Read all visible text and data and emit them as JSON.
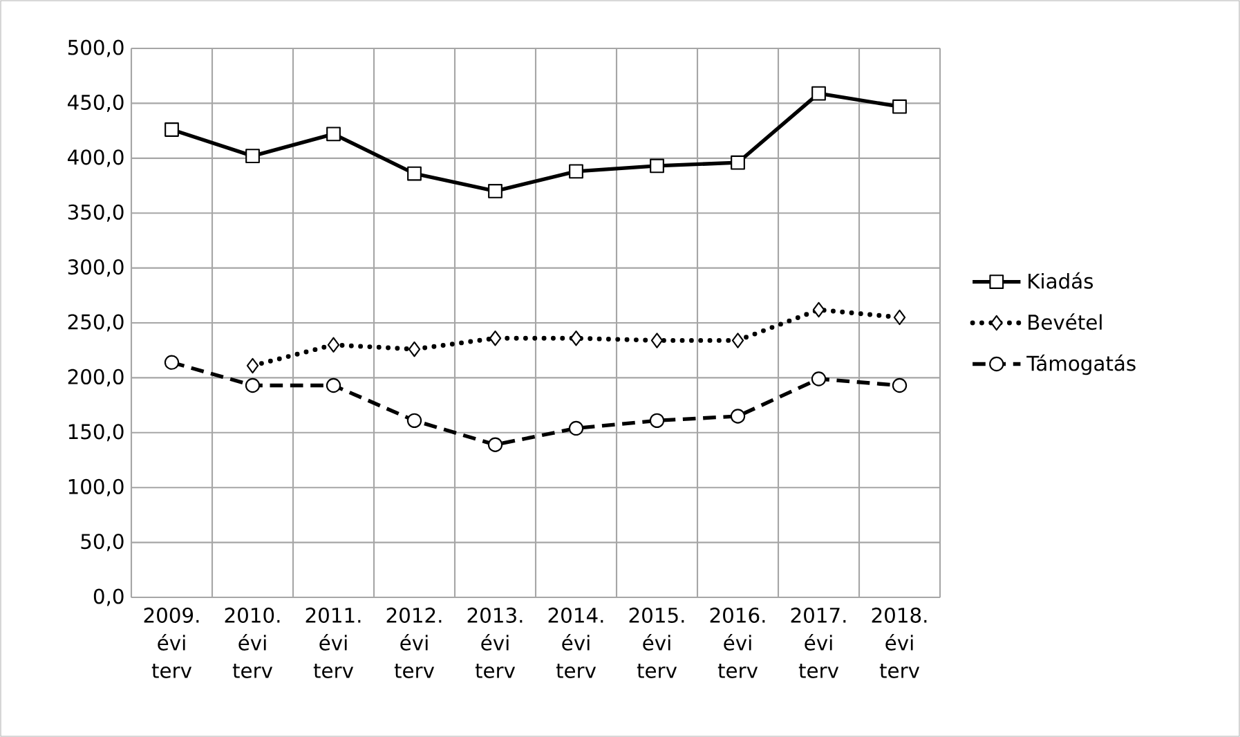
{
  "chart_data": {
    "type": "line",
    "categories": [
      "2009. évi terv",
      "2010. évi terv",
      "2011. évi terv",
      "2012. évi terv",
      "2013. évi terv",
      "2014. évi terv",
      "2015. évi terv",
      "2016. évi terv",
      "2017. évi terv",
      "2018. évi terv"
    ],
    "series": [
      {
        "name": "Kiadás",
        "color": "#000000",
        "marker": "square",
        "line_style": "solid",
        "values": [
          426,
          402,
          422,
          386,
          370,
          388,
          393,
          396,
          459,
          447
        ]
      },
      {
        "name": "Bevétel",
        "color": "#000000",
        "marker": "diamond",
        "line_style": "dotted",
        "values": [
          null,
          211,
          230,
          226,
          236,
          236,
          234,
          234,
          262,
          255
        ]
      },
      {
        "name": "Támogatás",
        "color": "#000000",
        "marker": "circle",
        "line_style": "dashed",
        "values": [
          214,
          193,
          193,
          161,
          139,
          154,
          161,
          165,
          199,
          193
        ]
      }
    ],
    "ylim": [
      0,
      500
    ],
    "yticks": [
      {
        "value": 0,
        "label": "0,0"
      },
      {
        "value": 50,
        "label": "50,0"
      },
      {
        "value": 100,
        "label": "100,0"
      },
      {
        "value": 150,
        "label": "150,0"
      },
      {
        "value": 200,
        "label": "200,0"
      },
      {
        "value": 250,
        "label": "250,0"
      },
      {
        "value": 300,
        "label": "300,0"
      },
      {
        "value": 350,
        "label": "350,0"
      },
      {
        "value": 400,
        "label": "400,0"
      },
      {
        "value": 450,
        "label": "450,0"
      },
      {
        "value": 500,
        "label": "500,0"
      }
    ],
    "grid": true,
    "legend": "right"
  }
}
